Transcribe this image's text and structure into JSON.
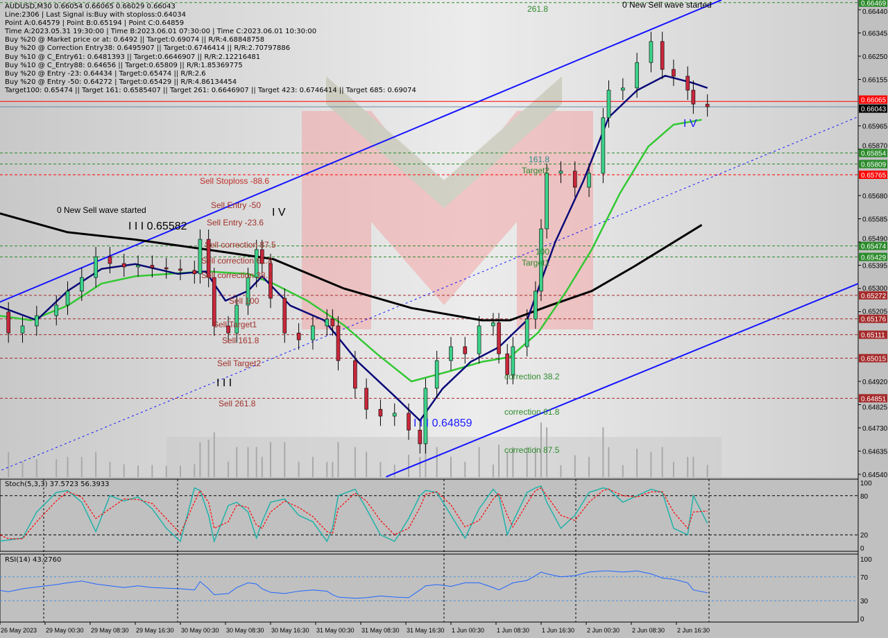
{
  "info_panel": {
    "lines": [
      "AUDUSD,M30  0.66054 0.66065 0.66029 0.66043",
      "Line:2306 | Last Signal is:Buy with stoploss:0.64034",
      "Point A:0.64579 | Point B:0.65194 | Point C:0.64859",
      "Time A:2023.05.31 19:30:00 | Time B:2023.06.01 07:30:00 | Time C:2023.06.01 10:30:00",
      "Buy %20 @ Market price or at: 0.6492 || Target:0.69074 || R/R:4.68848758",
      "Buy %20 @ Correction Entry38: 0.6495907 || Target:0.6746414 || R/R:2.70797886",
      "Buy %10 @ C_Entry61: 0.6481393 || Target:0.6646907 || R/R:2.12216481",
      "Buy %10 @ C_Entry88: 0.64656 || Target:0.65809 || R/R:1.85369775",
      "Buy %20 @ Entry -23: 0.64434 | Target:0.65474 || R/R:2.6",
      "Buy %20 @ Entry -50: 0.64272 | Target:0.65429 || R/R:4.86134454",
      "Target100: 0.65474 || Target 161: 0.6585407 || Target 261: 0.6646907 || Target 423: 0.6746414 || Target 685: 0.69074"
    ]
  },
  "annotations": [
    {
      "text": "261.8",
      "color": "#2e8b2e"
    },
    {
      "text": "0 New Sell wave started",
      "color": "#000000"
    },
    {
      "text": "0 New Sell wave started",
      "color": "#000000"
    },
    {
      "text": "I I I 0.65582",
      "color": "#000000"
    },
    {
      "text": "I V",
      "color": "#000000"
    },
    {
      "text": "Sell Stoploss -88.6",
      "color": "#c0302a"
    },
    {
      "text": "Sell Entry -50",
      "color": "#a0302a"
    },
    {
      "text": "Sell Entry -23.6",
      "color": "#a0302a"
    },
    {
      "text": "Sell correction 87.5",
      "color": "#a0302a"
    },
    {
      "text": "Sell correction 61.8",
      "color": "#a0302a"
    },
    {
      "text": "Sell correction 38.2",
      "color": "#a0302a"
    },
    {
      "text": "Sell 100",
      "color": "#a0302a"
    },
    {
      "text": "Sell Target1",
      "color": "#a0302a"
    },
    {
      "text": "Sell 161.8",
      "color": "#a0302a"
    },
    {
      "text": "Sell Target2",
      "color": "#a0302a"
    },
    {
      "text": "I I I",
      "color": "#000000"
    },
    {
      "text": "Sell  261.8",
      "color": "#a0302a"
    },
    {
      "text": "161.8",
      "color": "#2e8b8b"
    },
    {
      "text": "Target2",
      "color": "#2e8b2e"
    },
    {
      "text": "100",
      "color": "#2e8b2e"
    },
    {
      "text": "Target1",
      "color": "#2e8b2e"
    },
    {
      "text": "correction 38.2",
      "color": "#2e8b2e"
    },
    {
      "text": "I I I 0.64859",
      "color": "#1a1aff"
    },
    {
      "text": "correction 61.8",
      "color": "#2e8b2e"
    },
    {
      "text": "correction 87.5",
      "color": "#2e8b2e"
    },
    {
      "text": "I V",
      "color": "#1a1aff"
    }
  ],
  "chart_data": {
    "type": "candlestick",
    "symbol": "AUDUSD",
    "timeframe": "M30",
    "colors": {
      "bull": "#3cd28a",
      "bear": "#c8283c",
      "ma_fast": "#0a0a78",
      "ma_mid": "#32c832",
      "ma_slow": "#000000",
      "channel": "#1414ff",
      "background": "#dcdcdc"
    },
    "ylim": [
      0.645,
      0.6648
    ],
    "y_ticks": [
      "0.66440",
      "0.66345",
      "0.66250",
      "0.66155",
      "0.65965",
      "0.65870",
      "0.65680",
      "0.65585",
      "0.65490",
      "0.65395",
      "0.65300",
      "0.65205",
      "0.64920",
      "0.64825",
      "0.64730",
      "0.64635",
      "0.64540"
    ],
    "x_ticks": [
      {
        "label": "26 May 2023",
        "t": "2023-05-26T16:30"
      },
      {
        "label": "29 May 00:30",
        "t": "2023-05-29T00:30"
      },
      {
        "label": "29 May 08:30",
        "t": "2023-05-29T08:30"
      },
      {
        "label": "29 May 16:30",
        "t": "2023-05-29T16:30"
      },
      {
        "label": "30 May 00:30",
        "t": "2023-05-30T00:30"
      },
      {
        "label": "30 May 08:30",
        "t": "2023-05-30T08:30"
      },
      {
        "label": "30 May 16:30",
        "t": "2023-05-30T16:30"
      },
      {
        "label": "31 May 00:30",
        "t": "2023-05-31T00:30"
      },
      {
        "label": "31 May 08:30",
        "t": "2023-05-31T08:30"
      },
      {
        "label": "31 May 16:30",
        "t": "2023-05-31T16:30"
      },
      {
        "label": "1 Jun 00:30",
        "t": "2023-06-01T00:30"
      },
      {
        "label": "1 Jun 08:30",
        "t": "2023-06-01T08:30"
      },
      {
        "label": "1 Jun 16:30",
        "t": "2023-06-01T16:30"
      },
      {
        "label": "2 Jun 00:30",
        "t": "2023-06-02T00:30"
      },
      {
        "label": "2 Jun 08:30",
        "t": "2023-06-02T08:30"
      },
      {
        "label": "2 Jun 16:30",
        "t": "2023-06-02T16:30"
      }
    ],
    "price_levels": [
      {
        "price": "0.66469",
        "color": "#2a8a2a",
        "line": "#2a8a2a"
      },
      {
        "price": "0.66065",
        "color": "#ff0000",
        "line": "#ff0000"
      },
      {
        "price": "0.66043",
        "color": "#000000",
        "line": "#6a8aa0"
      },
      {
        "price": "0.65854",
        "color": "#2a8a2a",
        "line": "#2a8a2a"
      },
      {
        "price": "0.65809",
        "color": "#2a8a2a",
        "line": "#2a8a2a"
      },
      {
        "price": "0.65765",
        "color": "#ff0000",
        "line": "#ff0000"
      },
      {
        "price": "0.65474",
        "color": "#2a8a2a",
        "line": "#2a8a2a"
      },
      {
        "price": "0.65429",
        "color": "#2a8a2a",
        "line": "#2a8a2a"
      },
      {
        "price": "0.65272",
        "color": "#a52a2a",
        "line": "#a52a2a"
      },
      {
        "price": "0.65176",
        "color": "#a52a2a",
        "line": "#a52a2a"
      },
      {
        "price": "0.65111",
        "color": "#a52a2a",
        "line": "#a52a2a"
      },
      {
        "price": "0.65015",
        "color": "#a52a2a",
        "line": "#a52a2a"
      },
      {
        "price": "0.64851",
        "color": "#a52a2a",
        "line": "#a52a2a"
      }
    ],
    "close": [
      [
        "2023-05-26T16:00",
        0.65204
      ],
      [
        "2023-05-26T18:00",
        0.65118
      ],
      [
        "2023-05-26T20:30",
        0.65147
      ],
      [
        "2023-05-26T23:00",
        0.65189
      ],
      [
        "2023-05-29T02:30",
        0.65232
      ],
      [
        "2023-05-29T04:30",
        0.65289
      ],
      [
        "2023-05-29T07:00",
        0.65345
      ],
      [
        "2023-05-29T09:30",
        0.6543
      ],
      [
        "2023-05-29T12:00",
        0.65402
      ],
      [
        "2023-05-29T14:30",
        0.65388
      ],
      [
        "2023-05-29T17:00",
        0.65395
      ],
      [
        "2023-05-29T19:30",
        0.65385
      ],
      [
        "2023-05-29T22:00",
        0.6538
      ],
      [
        "2023-05-30T00:30",
        0.65374
      ],
      [
        "2023-05-30T03:00",
        0.6536
      ],
      [
        "2023-05-30T04:00",
        0.65501
      ],
      [
        "2023-05-30T05:30",
        0.65345
      ],
      [
        "2023-05-30T06:30",
        0.65147
      ],
      [
        "2023-05-30T09:00",
        0.65118
      ],
      [
        "2023-05-30T10:30",
        0.65232
      ],
      [
        "2023-05-30T12:30",
        0.65345
      ],
      [
        "2023-05-30T14:00",
        0.65459
      ],
      [
        "2023-05-30T15:00",
        0.65402
      ],
      [
        "2023-05-30T16:30",
        0.6526
      ],
      [
        "2023-05-30T19:00",
        0.65118
      ],
      [
        "2023-05-30T21:30",
        0.6509
      ],
      [
        "2023-05-31T00:00",
        0.65147
      ],
      [
        "2023-05-31T02:30",
        0.65175
      ],
      [
        "2023-05-31T03:30",
        0.65147
      ],
      [
        "2023-05-31T04:30",
        0.65005
      ],
      [
        "2023-05-31T07:30",
        0.64892
      ],
      [
        "2023-05-31T09:30",
        0.64806
      ],
      [
        "2023-05-31T12:00",
        0.64778
      ],
      [
        "2023-05-31T14:30",
        0.6479
      ],
      [
        "2023-05-31T17:00",
        0.64721
      ],
      [
        "2023-05-31T19:00",
        0.64665
      ],
      [
        "2023-05-31T20:00",
        0.64892
      ],
      [
        "2023-05-31T22:00",
        0.65005
      ],
      [
        "2023-06-01T00:30",
        0.65062
      ],
      [
        "2023-06-01T03:00",
        0.65033
      ],
      [
        "2023-06-01T05:30",
        0.65147
      ],
      [
        "2023-06-01T08:00",
        0.6516
      ],
      [
        "2023-06-01T09:00",
        0.65033
      ],
      [
        "2023-06-01T10:30",
        0.64948
      ],
      [
        "2023-06-01T11:30",
        0.65062
      ],
      [
        "2023-06-01T14:00",
        0.65175
      ],
      [
        "2023-06-01T15:30",
        0.65289
      ],
      [
        "2023-06-01T16:30",
        0.65544
      ],
      [
        "2023-06-01T17:30",
        0.65771
      ],
      [
        "2023-06-01T20:00",
        0.6578
      ],
      [
        "2023-06-01T22:30",
        0.65714
      ],
      [
        "2023-06-02T01:00",
        0.65771
      ],
      [
        "2023-06-02T03:30",
        0.65998
      ],
      [
        "2023-06-02T04:30",
        0.66111
      ],
      [
        "2023-06-02T07:00",
        0.6612
      ],
      [
        "2023-06-02T09:30",
        0.66224
      ],
      [
        "2023-06-02T12:00",
        0.6631
      ],
      [
        "2023-06-02T14:00",
        0.66196
      ],
      [
        "2023-06-02T16:00",
        0.66168
      ],
      [
        "2023-06-02T18:30",
        0.66111
      ],
      [
        "2023-06-02T19:30",
        0.66054
      ],
      [
        "2023-06-02T22:00",
        0.66043
      ]
    ],
    "ma_slow": [
      [
        "2023-05-26T16:00",
        0.6561
      ],
      [
        "2023-05-29T04:30",
        0.6553
      ],
      [
        "2023-05-29T16:30",
        0.655
      ],
      [
        "2023-05-30T05:00",
        0.6546
      ],
      [
        "2023-05-30T17:00",
        0.6542
      ],
      [
        "2023-05-31T05:30",
        0.653
      ],
      [
        "2023-05-31T17:30",
        0.6522
      ],
      [
        "2023-06-01T06:00",
        0.6517
      ],
      [
        "2023-06-01T11:00",
        0.6517
      ],
      [
        "2023-06-01T18:00",
        0.6523
      ],
      [
        "2023-06-02T01:30",
        0.6529
      ],
      [
        "2023-06-02T09:00",
        0.6539
      ],
      [
        "2023-06-02T21:00",
        0.6556
      ]
    ],
    "ma_mid": [
      [
        "2023-05-26T16:00",
        0.6519
      ],
      [
        "2023-05-26T22:00",
        0.6517
      ],
      [
        "2023-05-29T04:30",
        0.6523
      ],
      [
        "2023-05-29T10:30",
        0.6532
      ],
      [
        "2023-05-29T16:30",
        0.6535
      ],
      [
        "2023-05-29T22:30",
        0.6536
      ],
      [
        "2023-05-30T05:00",
        0.6537
      ],
      [
        "2023-05-30T12:30",
        0.6536
      ],
      [
        "2023-05-30T17:00",
        0.6532
      ],
      [
        "2023-05-30T23:00",
        0.6525
      ],
      [
        "2023-05-31T05:30",
        0.6515
      ],
      [
        "2023-05-31T11:30",
        0.6503
      ],
      [
        "2023-05-31T17:30",
        0.6492
      ],
      [
        "2023-06-01T00:00",
        0.6496
      ],
      [
        "2023-06-01T06:00",
        0.65
      ],
      [
        "2023-06-01T11:00",
        0.6502
      ],
      [
        "2023-06-01T16:00",
        0.6512
      ],
      [
        "2023-06-01T21:00",
        0.6529
      ],
      [
        "2023-06-02T01:30",
        0.6546
      ],
      [
        "2023-06-02T06:30",
        0.6569
      ],
      [
        "2023-06-02T11:30",
        0.6588
      ],
      [
        "2023-06-02T16:00",
        0.6597
      ],
      [
        "2023-06-02T21:00",
        0.6599
      ]
    ],
    "ma_fast": [
      [
        "2023-05-26T16:00",
        0.6523
      ],
      [
        "2023-05-26T23:00",
        0.6517
      ],
      [
        "2023-05-29T04:30",
        0.6529
      ],
      [
        "2023-05-29T10:30",
        0.6538
      ],
      [
        "2023-05-29T16:30",
        0.654
      ],
      [
        "2023-05-30T00:00",
        0.6536
      ],
      [
        "2023-05-30T05:00",
        0.6537
      ],
      [
        "2023-05-30T08:30",
        0.6525
      ],
      [
        "2023-05-30T12:30",
        0.6529
      ],
      [
        "2023-05-30T15:00",
        0.6535
      ],
      [
        "2023-05-30T20:00",
        0.6523
      ],
      [
        "2023-05-31T02:00",
        0.6517
      ],
      [
        "2023-05-31T08:00",
        0.65
      ],
      [
        "2023-05-31T14:30",
        0.6486
      ],
      [
        "2023-05-31T19:00",
        0.6476
      ],
      [
        "2023-05-31T23:00",
        0.6489
      ],
      [
        "2023-06-01T04:00",
        0.65
      ],
      [
        "2023-06-01T09:00",
        0.6506
      ],
      [
        "2023-06-01T14:00",
        0.6517
      ],
      [
        "2023-06-01T19:00",
        0.6549
      ],
      [
        "2023-06-02T00:00",
        0.6574
      ],
      [
        "2023-06-02T04:30",
        0.66
      ],
      [
        "2023-06-02T09:30",
        0.6611
      ],
      [
        "2023-06-02T14:30",
        0.6617
      ],
      [
        "2023-06-02T19:30",
        0.6614
      ],
      [
        "2023-06-02T22:00",
        0.6612
      ]
    ],
    "channel_lines": [
      {
        "style": "solid",
        "from": [
          "2023-05-26T16:00",
          0.6524
        ],
        "to": [
          "2023-06-03T00:30",
          0.6648
        ]
      },
      {
        "style": "solid",
        "from": [
          "2023-05-31T13:00",
          0.6453
        ],
        "to": [
          "2023-06-04T00:45",
          0.6532
        ]
      },
      {
        "style": "dotted",
        "from": [
          "2023-05-26T16:00",
          0.6455
        ],
        "to": [
          "2023-06-04T00:30",
          0.66
        ]
      }
    ],
    "stochastic": {
      "label": "Stoch(5,3,3) 37.5723 56.3933",
      "main_value": 37.5723,
      "signal_value": 56.3933,
      "levels": [
        20,
        80
      ],
      "ylim": [
        0,
        100
      ],
      "y_ticks": [
        "100",
        "80",
        "20",
        "0"
      ],
      "main": [
        10,
        12,
        15,
        55,
        85,
        88,
        70,
        25,
        80,
        72,
        78,
        60,
        30,
        10,
        92,
        88,
        50,
        10,
        65,
        70,
        55,
        15,
        40,
        70,
        75,
        50,
        40,
        10,
        30,
        80,
        90,
        60,
        20,
        10,
        45,
        80,
        88,
        85,
        50,
        15,
        60,
        90,
        80,
        20,
        40,
        85,
        92,
        95,
        70,
        30,
        50,
        85,
        92,
        90,
        70,
        80,
        90,
        85,
        30,
        20,
        80,
        37.5723
      ],
      "signal": [
        22,
        14,
        14,
        40,
        72,
        86,
        78,
        45,
        60,
        75,
        74,
        68,
        45,
        22,
        70,
        88,
        70,
        30,
        40,
        66,
        62,
        35,
        30,
        55,
        72,
        62,
        48,
        25,
        22,
        60,
        84,
        72,
        42,
        20,
        30,
        62,
        82,
        86,
        66,
        32,
        42,
        75,
        84,
        50,
        32,
        68,
        88,
        92,
        80,
        50,
        42,
        70,
        88,
        90,
        80,
        78,
        86,
        86,
        55,
        30,
        55,
        56.3933
      ]
    },
    "rsi": {
      "label": "RSI(14) 43.2760",
      "value": 43.276,
      "levels": [
        30,
        70
      ],
      "ylim": [
        0,
        100
      ],
      "y_ticks": [
        "100",
        "70",
        "30",
        "0"
      ],
      "values": [
        48,
        45,
        50,
        53,
        57,
        60,
        63,
        58,
        55,
        52,
        55,
        52,
        51,
        50,
        48,
        62,
        50,
        40,
        42,
        52,
        60,
        58,
        50,
        44,
        42,
        46,
        48,
        46,
        40,
        36,
        34,
        35,
        38,
        36,
        35,
        48,
        55,
        57,
        54,
        60,
        60,
        52,
        48,
        55,
        60,
        64,
        72,
        78,
        75,
        70,
        72,
        78,
        80,
        80,
        78,
        80,
        75,
        68,
        66,
        60,
        48,
        43.276
      ]
    }
  }
}
